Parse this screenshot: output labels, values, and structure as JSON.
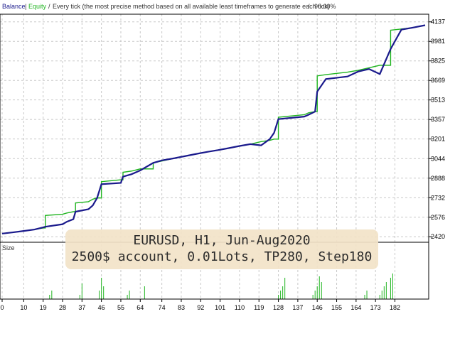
{
  "header": {
    "balance_label": "Balance",
    "equity_label": "Equity",
    "description": "Every tick (the most precise method based on all available least timeframes to generate each tick)",
    "quality": "90.00%"
  },
  "overlay": {
    "line1": "EURUSD, H1, Jun-Aug2020",
    "line2": "2500$ account, 0.01Lots, TP280, Step180"
  },
  "colors": {
    "balance": "#1a1a8c",
    "equity": "#21b521",
    "grid": "#c8c8c8",
    "axis": "#000000"
  },
  "chart_data": [
    {
      "type": "line",
      "x": [
        0,
        5,
        10,
        15,
        19,
        20,
        28,
        30,
        33,
        34,
        40,
        42,
        44,
        46,
        55,
        56,
        60,
        64,
        70,
        74,
        80,
        85,
        90,
        95,
        100,
        105,
        110,
        115,
        120,
        124,
        126,
        128,
        140,
        142,
        145,
        146,
        150,
        160,
        165,
        170,
        175,
        180,
        185,
        190,
        196
      ],
      "series": [
        {
          "name": "Balance",
          "values": [
            2445,
            2455,
            2466,
            2478,
            2490,
            2590,
            2600,
            2610,
            2620,
            2690,
            2700,
            2720,
            2730,
            2860,
            2875,
            2935,
            2945,
            2962,
            3010,
            3025,
            3048,
            3065,
            3082,
            3098,
            3112,
            3128,
            3145,
            3160,
            3180,
            3190,
            3200,
            3375,
            3395,
            3410,
            3420,
            3705,
            3715,
            3735,
            3750,
            3770,
            3790,
            4070,
            4080,
            4090,
            4110
          ]
        },
        {
          "name": "Equity",
          "values": [
            2445,
            2455,
            2466,
            2478,
            2495,
            2500,
            2520,
            2540,
            2560,
            2620,
            2640,
            2670,
            2730,
            2840,
            2850,
            2900,
            2920,
            2950,
            3010,
            3030,
            3048,
            3065,
            3082,
            3098,
            3112,
            3128,
            3145,
            3160,
            3150,
            3200,
            3250,
            3360,
            3380,
            3395,
            3420,
            3580,
            3680,
            3700,
            3740,
            3760,
            3720,
            3920,
            4075,
            4090,
            4110
          ]
        }
      ],
      "ylim": [
        2376,
        4198
      ],
      "yticks": [
        "4137",
        "3981",
        "3825",
        "3669",
        "3513",
        "3357",
        "3201",
        "3044",
        "2888",
        "2732",
        "2576",
        "2420"
      ],
      "xlim": [
        0,
        196
      ]
    },
    {
      "type": "bar",
      "title": "Size",
      "x": [
        22,
        23,
        36,
        37,
        45,
        46,
        47,
        58,
        59,
        66,
        128,
        129,
        130,
        131,
        144,
        145,
        146,
        147,
        148,
        168,
        169,
        175,
        176,
        177,
        178,
        180,
        181
      ],
      "values": [
        6,
        12,
        6,
        22,
        12,
        30,
        18,
        6,
        12,
        18,
        6,
        12,
        18,
        30,
        6,
        12,
        18,
        32,
        24,
        6,
        12,
        6,
        12,
        18,
        24,
        30,
        36
      ],
      "xticks": [
        "0",
        "10",
        "19",
        "28",
        "37",
        "46",
        "55",
        "64",
        "74",
        "83",
        "92",
        "101",
        "110",
        "119",
        "128",
        "137",
        "146",
        "155",
        "164",
        "173",
        "182"
      ]
    }
  ]
}
